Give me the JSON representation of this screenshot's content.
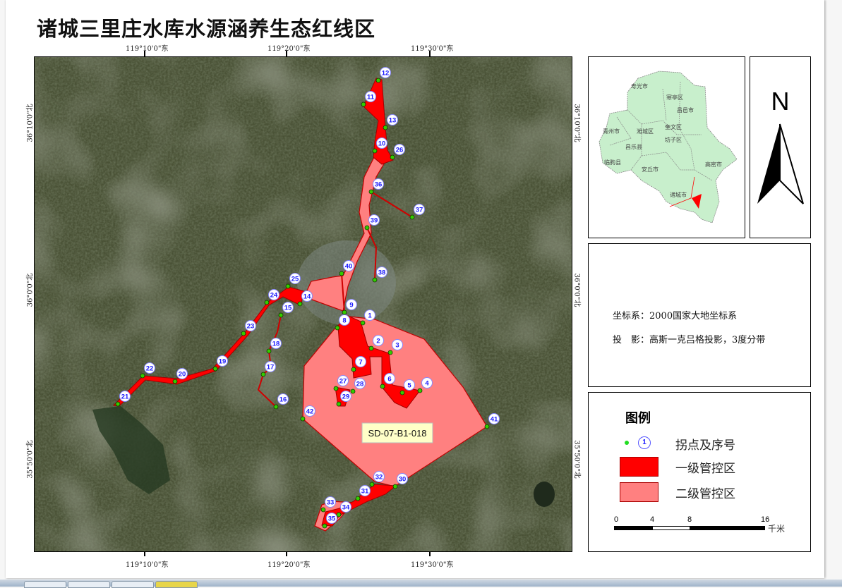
{
  "title": "诸城三里庄水库水源涵养生态红线区",
  "map": {
    "lon_labels": [
      "119°10'0\"东",
      "119°20'0\"东",
      "119°30'0\"东"
    ],
    "lat_labels": [
      "36°10'0\"北",
      "36°0'0\"北",
      "35°50'0\"北"
    ],
    "zone_label": "SD-07-B1-018",
    "points": [
      "1",
      "2",
      "3",
      "4",
      "5",
      "6",
      "7",
      "8",
      "9",
      "10",
      "11",
      "12",
      "13",
      "14",
      "15",
      "16",
      "17",
      "18",
      "19",
      "20",
      "21",
      "22",
      "23",
      "24",
      "25",
      "26",
      "27",
      "28",
      "29",
      "30",
      "31",
      "32",
      "33",
      "34",
      "35",
      "36",
      "37",
      "38",
      "39",
      "40",
      "41",
      "42"
    ],
    "colors": {
      "primary": "#ff0000",
      "secondary": "#ff8080",
      "point": "#33cc00",
      "label": "#1a1aff"
    }
  },
  "inset": {
    "regions": [
      "寿光市",
      "寒亭区",
      "昌邑市",
      "青州市",
      "潍城区",
      "奎文区",
      "坊子区",
      "昌乐县",
      "临朐县",
      "安丘市",
      "高密市",
      "诸城市"
    ]
  },
  "north": {
    "label": "N"
  },
  "info": {
    "crs": "坐标系：2000国家大地坐标系",
    "projection": "投　影：高斯一克吕格投影，3度分带"
  },
  "legend": {
    "title": "图例",
    "point_symbol": "1",
    "items": [
      "拐点及序号",
      "一级管控区",
      "二级管控区"
    ],
    "scale_ticks": [
      "0",
      "4",
      "8",
      "16"
    ],
    "scale_unit": "千米"
  }
}
